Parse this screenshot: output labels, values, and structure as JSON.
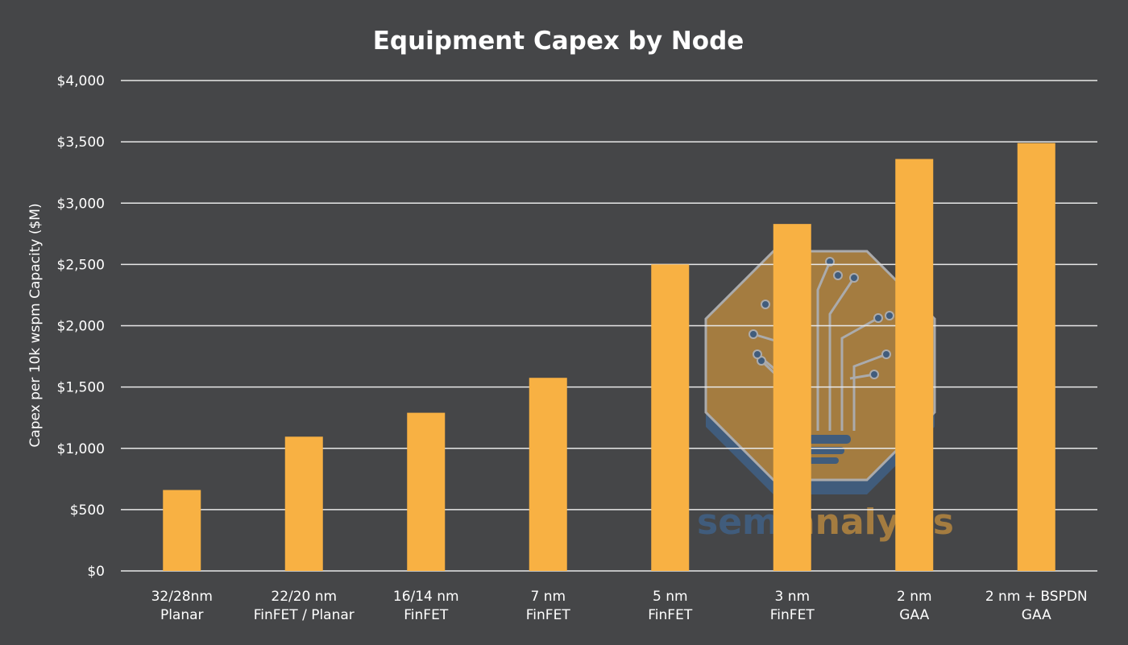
{
  "colors": {
    "background": "#454648",
    "bar": "#f8b143",
    "grid": "#e8e8e8",
    "text": "#ffffff",
    "watermark_blue": "#3d6fa8",
    "watermark_orange": "#f3a93a"
  },
  "watermark": {
    "icon": "semianalysis-logo-icon",
    "text_blue": "semi",
    "text_orange": "analysis"
  },
  "chart_data": {
    "type": "bar",
    "title": "Equipment Capex by Node",
    "xlabel": "",
    "ylabel": "Capex per 10k wspm Capacity ($M)",
    "ylim": [
      0,
      4000
    ],
    "yticks": [
      0,
      500,
      1000,
      1500,
      2000,
      2500,
      3000,
      3500,
      4000
    ],
    "ytick_labels": [
      "$0",
      "$500",
      "$1,000",
      "$1,500",
      "$2,000",
      "$2,500",
      "$3,000",
      "$3,500",
      "$4,000"
    ],
    "grid": true,
    "legend": "none",
    "categories": [
      [
        "32/28nm",
        "Planar"
      ],
      [
        "22/20 nm",
        "FinFET / Planar"
      ],
      [
        "16/14 nm",
        "FinFET"
      ],
      [
        "7 nm",
        "FinFET"
      ],
      [
        "5 nm",
        "FinFET"
      ],
      [
        "3 nm",
        "FinFET"
      ],
      [
        "2 nm",
        "GAA"
      ],
      [
        "2 nm + BSPDN",
        "GAA"
      ]
    ],
    "values": [
      660,
      1095,
      1290,
      1575,
      2500,
      2830,
      3360,
      3490
    ]
  }
}
